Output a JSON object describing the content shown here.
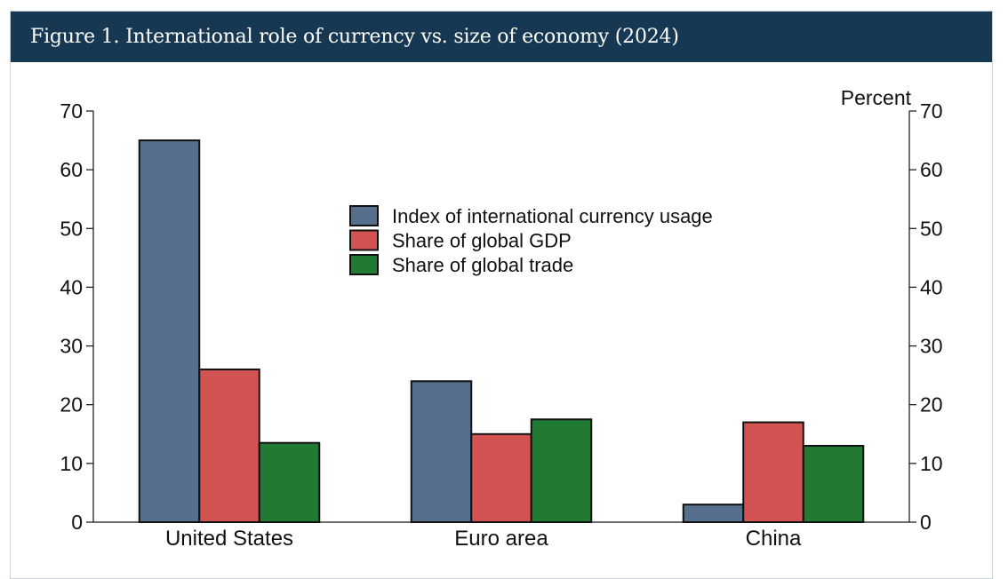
{
  "figure": {
    "title": "Figure 1. International role of currency vs. size of economy (2024)"
  },
  "chart_data": {
    "type": "bar",
    "categories": [
      "United States",
      "Euro area",
      "China"
    ],
    "series": [
      {
        "name": "Index of international currency usage",
        "values": [
          65,
          24,
          3
        ],
        "color": "#566f8c"
      },
      {
        "name": "Share of global GDP",
        "values": [
          26,
          15,
          17
        ],
        "color": "#d25352"
      },
      {
        "name": "Share of global trade",
        "values": [
          13.5,
          17.5,
          13
        ],
        "color": "#217a32"
      }
    ],
    "ylim": [
      0,
      70
    ],
    "yticks": [
      0,
      10,
      20,
      30,
      40,
      50,
      60,
      70
    ],
    "right_axis_label": "Percent",
    "legend_position": "top-center",
    "grid": false
  }
}
